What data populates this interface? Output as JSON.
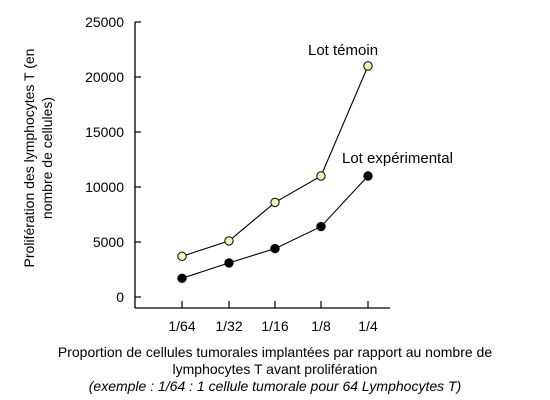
{
  "chart_data": {
    "type": "line",
    "categories": [
      "1/64",
      "1/32",
      "1/16",
      "1/8",
      "1/4"
    ],
    "series": [
      {
        "name": "Lot témoin",
        "values": [
          3700,
          5100,
          8600,
          11000,
          21000
        ],
        "marker": "open-circle",
        "color": "#f3f0b8"
      },
      {
        "name": "Lot expérimental",
        "values": [
          1700,
          3100,
          4400,
          6400,
          11000
        ],
        "marker": "filled-circle",
        "color": "#000000"
      }
    ],
    "ylim": [
      0,
      25000
    ],
    "yticks": [
      0,
      5000,
      10000,
      15000,
      20000,
      25000
    ],
    "ylabel_lines": [
      "Prolifération des lymphocytes T (en",
      "nombre de cellules)"
    ],
    "xlabel_lines": [
      "Proportion de cellules tumorales implantées par rapport au nombre de",
      "lymphocytes T avant prolifération"
    ],
    "xlabel_note": "(exemple : 1/64 : 1 cellule tumorale pour 64 Lymphocytes T)",
    "grid": false,
    "legend": "inline-labels"
  }
}
